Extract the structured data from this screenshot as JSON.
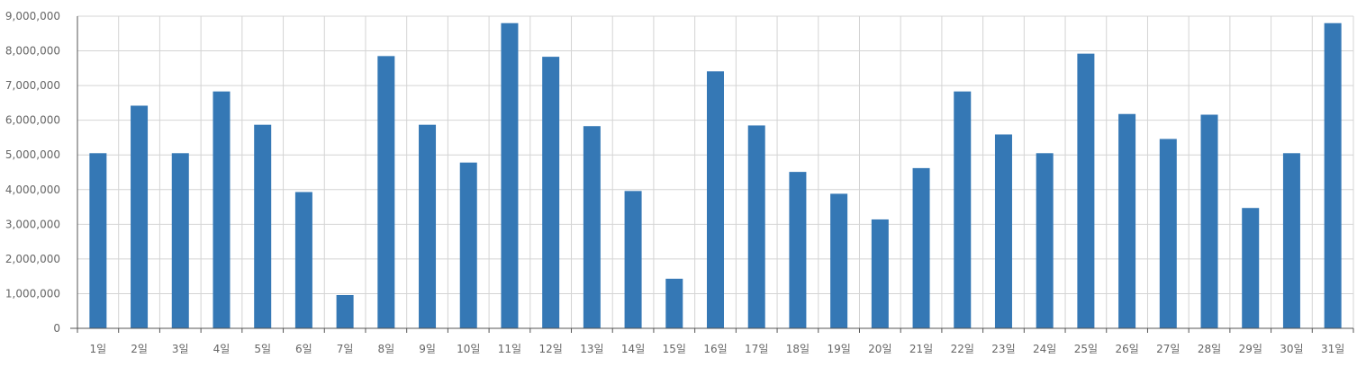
{
  "chart_data": {
    "type": "bar",
    "title": "",
    "xlabel": "",
    "ylabel": "",
    "categories": [
      "1일",
      "2일",
      "3일",
      "4일",
      "5일",
      "6일",
      "7일",
      "8일",
      "9일",
      "10일",
      "11일",
      "12일",
      "13일",
      "14일",
      "15일",
      "16일",
      "17일",
      "18일",
      "19일",
      "20일",
      "21일",
      "22일",
      "23일",
      "24일",
      "25일",
      "26일",
      "27일",
      "28일",
      "29일",
      "30일",
      "31일"
    ],
    "values": [
      5050000,
      6420000,
      5050000,
      6830000,
      5870000,
      3930000,
      960000,
      7850000,
      5870000,
      4780000,
      8800000,
      7830000,
      5830000,
      3960000,
      1430000,
      7410000,
      5850000,
      4510000,
      3880000,
      3140000,
      4620000,
      6830000,
      5590000,
      5050000,
      7920000,
      6180000,
      5460000,
      6160000,
      3470000,
      5050000,
      8800000
    ],
    "yticks": [
      "0",
      "1,000,000",
      "2,000,000",
      "3,000,000",
      "4,000,000",
      "5,000,000",
      "6,000,000",
      "7,000,000",
      "8,000,000",
      "9,000,000"
    ],
    "ylim": [
      0,
      9000000
    ],
    "grid": true,
    "legend": "none",
    "colors": {
      "bar": "#3578b5",
      "grid": "#d4d4d4",
      "axis": "#555555",
      "label": "#666666"
    }
  }
}
